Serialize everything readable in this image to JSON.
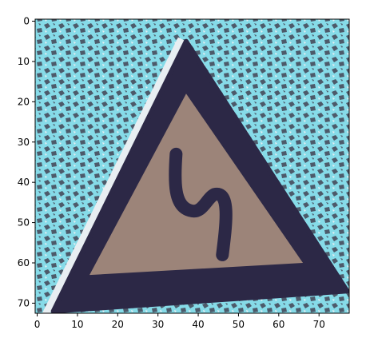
{
  "chart_data": {
    "type": "heatmap",
    "title": "",
    "xlabel": "",
    "ylabel": "",
    "image_size": [
      78,
      73
    ],
    "xlim": [
      -0.5,
      77.5
    ],
    "ylim": [
      72.5,
      -0.5
    ],
    "grid": false,
    "x_ticks": [
      0,
      10,
      20,
      30,
      40,
      50,
      60,
      70
    ],
    "y_ticks": [
      0,
      10,
      20,
      30,
      40,
      50,
      60,
      70
    ],
    "image_content": {
      "description_role": "image of a triangular warning road sign (double curve, first to left) over foliage/sky background",
      "colors": {
        "background_sky": "#86dbe8",
        "background_foliage": "#4d5a6a",
        "sign_border": "#2c2846",
        "sign_face": "#9c8479",
        "white_edge": "#e8eef2"
      },
      "triangle_outer": [
        [
          37,
          5
        ],
        [
          4,
          72
        ],
        [
          77,
          67
        ]
      ],
      "triangle_inner": [
        [
          37,
          18
        ],
        [
          13,
          63
        ],
        [
          66,
          60
        ]
      ],
      "symbol": "double-curve-arrow"
    }
  }
}
